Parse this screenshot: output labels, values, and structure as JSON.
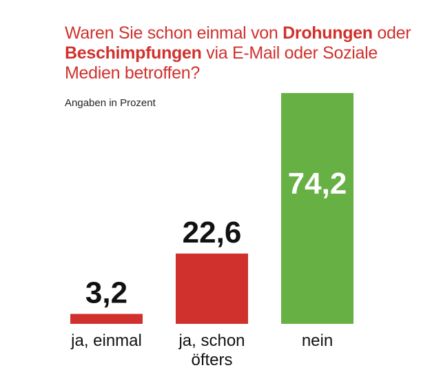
{
  "title": {
    "part1": "Waren Sie schon einmal von ",
    "bold1": "Drohungen",
    "part2": " oder ",
    "bold2": "Beschimpfungen",
    "part3": " via E-Mail oder Soziale Medien betroffen?"
  },
  "subtitle": "Angaben in Prozent",
  "colors": {
    "title": "#d0312d",
    "yes": "#d0312d",
    "no": "#67b043",
    "value_dark": "#111111",
    "value_light": "#ffffff"
  },
  "chart_data": {
    "type": "bar",
    "title": "Waren Sie schon einmal von Drohungen oder Beschimpfungen via E-Mail oder Soziale Medien betroffen?",
    "subtitle": "Angaben in Prozent",
    "categories": [
      [
        "ja, einmal"
      ],
      [
        "ja, schon",
        "öfters"
      ],
      [
        "nein"
      ]
    ],
    "values": [
      3.2,
      22.6,
      74.2
    ],
    "value_labels": [
      "3,2",
      "22,6",
      "74,2"
    ],
    "bar_colors": [
      "#d0312d",
      "#d0312d",
      "#67b043"
    ],
    "ylim": [
      0,
      74.2
    ],
    "grid": false,
    "legend": "none"
  }
}
